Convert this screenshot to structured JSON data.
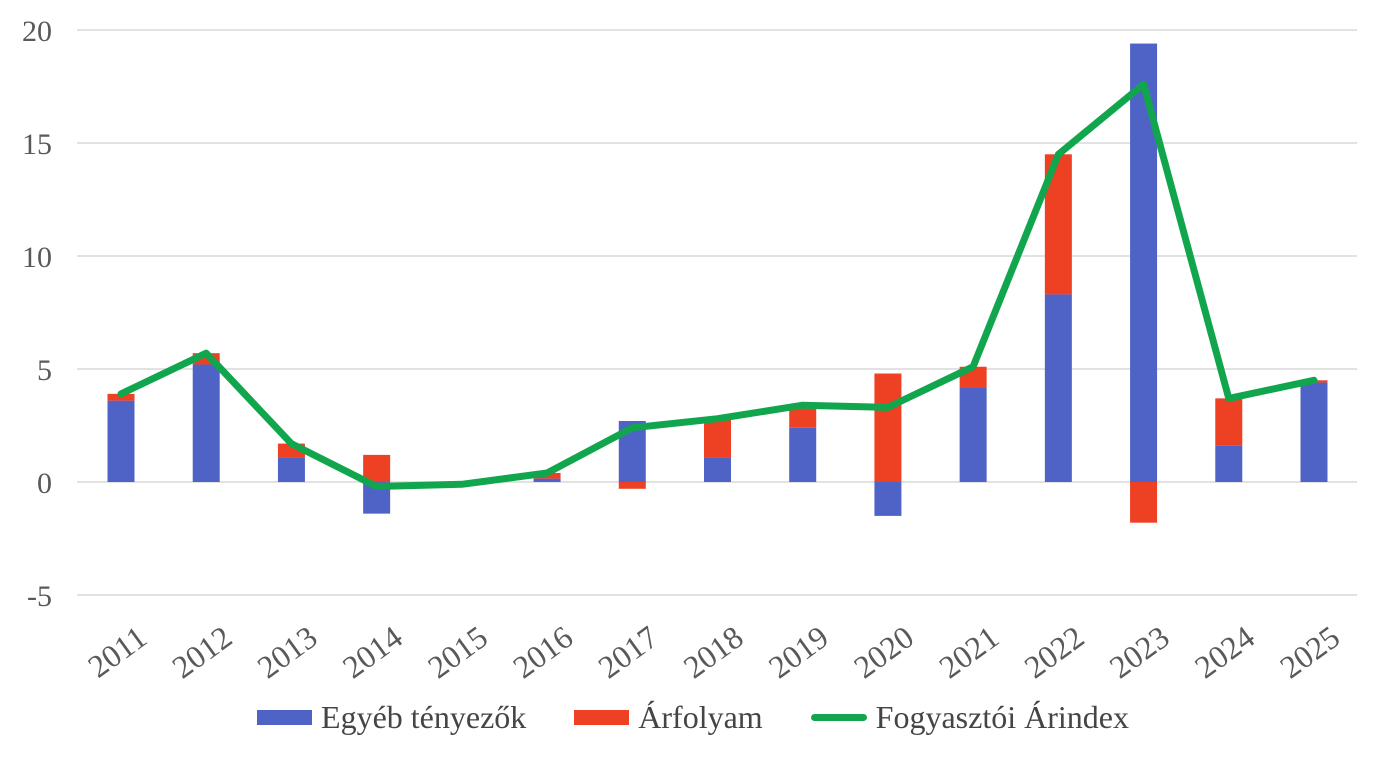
{
  "chart_data": {
    "type": "bar",
    "subtype": "stacked-bars-with-line",
    "title": "",
    "xlabel": "",
    "ylabel": "",
    "categories": [
      "2011",
      "2012",
      "2013",
      "2014",
      "2015",
      "2016",
      "2017",
      "2018",
      "2019",
      "2020",
      "2021",
      "2022",
      "2023",
      "2024",
      "2025"
    ],
    "series": [
      {
        "name": "Egyéb tényezők",
        "type": "bar",
        "color": "#4f63c7",
        "values": [
          3.6,
          5.2,
          1.1,
          -1.4,
          0,
          0.15,
          2.7,
          1.1,
          2.4,
          -1.5,
          4.2,
          8.3,
          19.4,
          1.6,
          4.4
        ]
      },
      {
        "name": "Árfolyam",
        "type": "bar",
        "color": "#ee4023",
        "values": [
          0.3,
          0.5,
          0.6,
          1.2,
          0,
          0.25,
          -0.3,
          1.7,
          1.0,
          4.8,
          0.9,
          6.2,
          -1.8,
          2.1,
          0.1
        ]
      },
      {
        "name": "Fogyasztói Árindex",
        "type": "line",
        "color": "#11a64d",
        "values": [
          3.9,
          5.7,
          1.7,
          -0.2,
          -0.1,
          0.4,
          2.4,
          2.8,
          3.4,
          3.3,
          5.1,
          14.5,
          17.6,
          3.7,
          4.5
        ]
      }
    ],
    "y_axis": {
      "ticks": [
        20,
        15,
        10,
        5,
        0,
        -5
      ],
      "min": -5,
      "max": 20
    },
    "grid": true,
    "legend_position": "bottom",
    "colors": {
      "grid": "#d9d9d9",
      "axis_text": "#595959",
      "legend_text": "#454545"
    }
  }
}
